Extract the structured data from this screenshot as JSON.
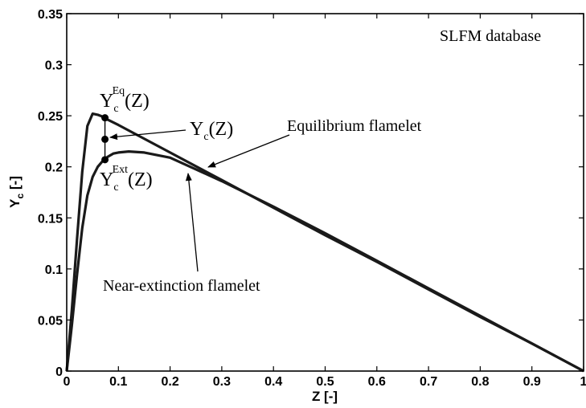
{
  "chart_data": {
    "type": "line",
    "xlabel": "Z [-]",
    "ylabel": "Y",
    "ylabel_sub": "c",
    "ylabel_unit": " [-]",
    "xlim": [
      0,
      1
    ],
    "ylim": [
      0,
      0.35
    ],
    "x_ticks": [
      "0",
      "0.1",
      "0.2",
      "0.3",
      "0.4",
      "0.5",
      "0.6",
      "0.7",
      "0.8",
      "0.9",
      "1"
    ],
    "y_ticks": [
      "0",
      "0.05",
      "0.1",
      "0.15",
      "0.2",
      "0.25",
      "0.3",
      "0.35"
    ],
    "grid": false,
    "series": [
      {
        "name": "Equilibrium flamelet",
        "x": [
          0,
          0.01,
          0.02,
          0.03,
          0.04,
          0.05,
          0.06,
          0.07,
          0.08,
          0.1,
          0.2,
          0.3,
          0.4,
          0.5,
          0.6,
          0.7,
          0.8,
          0.9,
          1.0
        ],
        "y": [
          0,
          0.06,
          0.13,
          0.195,
          0.24,
          0.252,
          0.251,
          0.249,
          0.246,
          0.241,
          0.214,
          0.187,
          0.16,
          0.133,
          0.107,
          0.08,
          0.053,
          0.027,
          0
        ]
      },
      {
        "name": "Near-extinction flamelet",
        "x": [
          0,
          0.01,
          0.02,
          0.03,
          0.04,
          0.05,
          0.06,
          0.07,
          0.08,
          0.09,
          0.1,
          0.12,
          0.15,
          0.2,
          0.3,
          0.4,
          0.5,
          0.6,
          0.7,
          0.8,
          0.9,
          1.0
        ],
        "y": [
          0,
          0.045,
          0.095,
          0.14,
          0.172,
          0.19,
          0.2,
          0.206,
          0.21,
          0.213,
          0.214,
          0.215,
          0.214,
          0.209,
          0.186,
          0.161,
          0.135,
          0.108,
          0.081,
          0.054,
          0.027,
          0
        ]
      }
    ],
    "markers": [
      {
        "x": 0.074,
        "y": 0.248
      },
      {
        "x": 0.074,
        "y": 0.227
      },
      {
        "x": 0.074,
        "y": 0.207
      }
    ],
    "annotations": {
      "database": "SLFM database",
      "eq_curve_label": "Equilibrium flamelet",
      "ext_curve_label": "Near-extinction flamelet",
      "yc_eq": {
        "base": "Y",
        "sub": "c",
        "sup": "Eq",
        "tail": "(Z)"
      },
      "yc": {
        "base": "Y",
        "sub": "c",
        "tail": "(Z)"
      },
      "yc_ext": {
        "base": "Y",
        "sub": "c",
        "sup": "Ext",
        "tail": "(Z)"
      }
    },
    "series_color": "#1a1a1a"
  }
}
